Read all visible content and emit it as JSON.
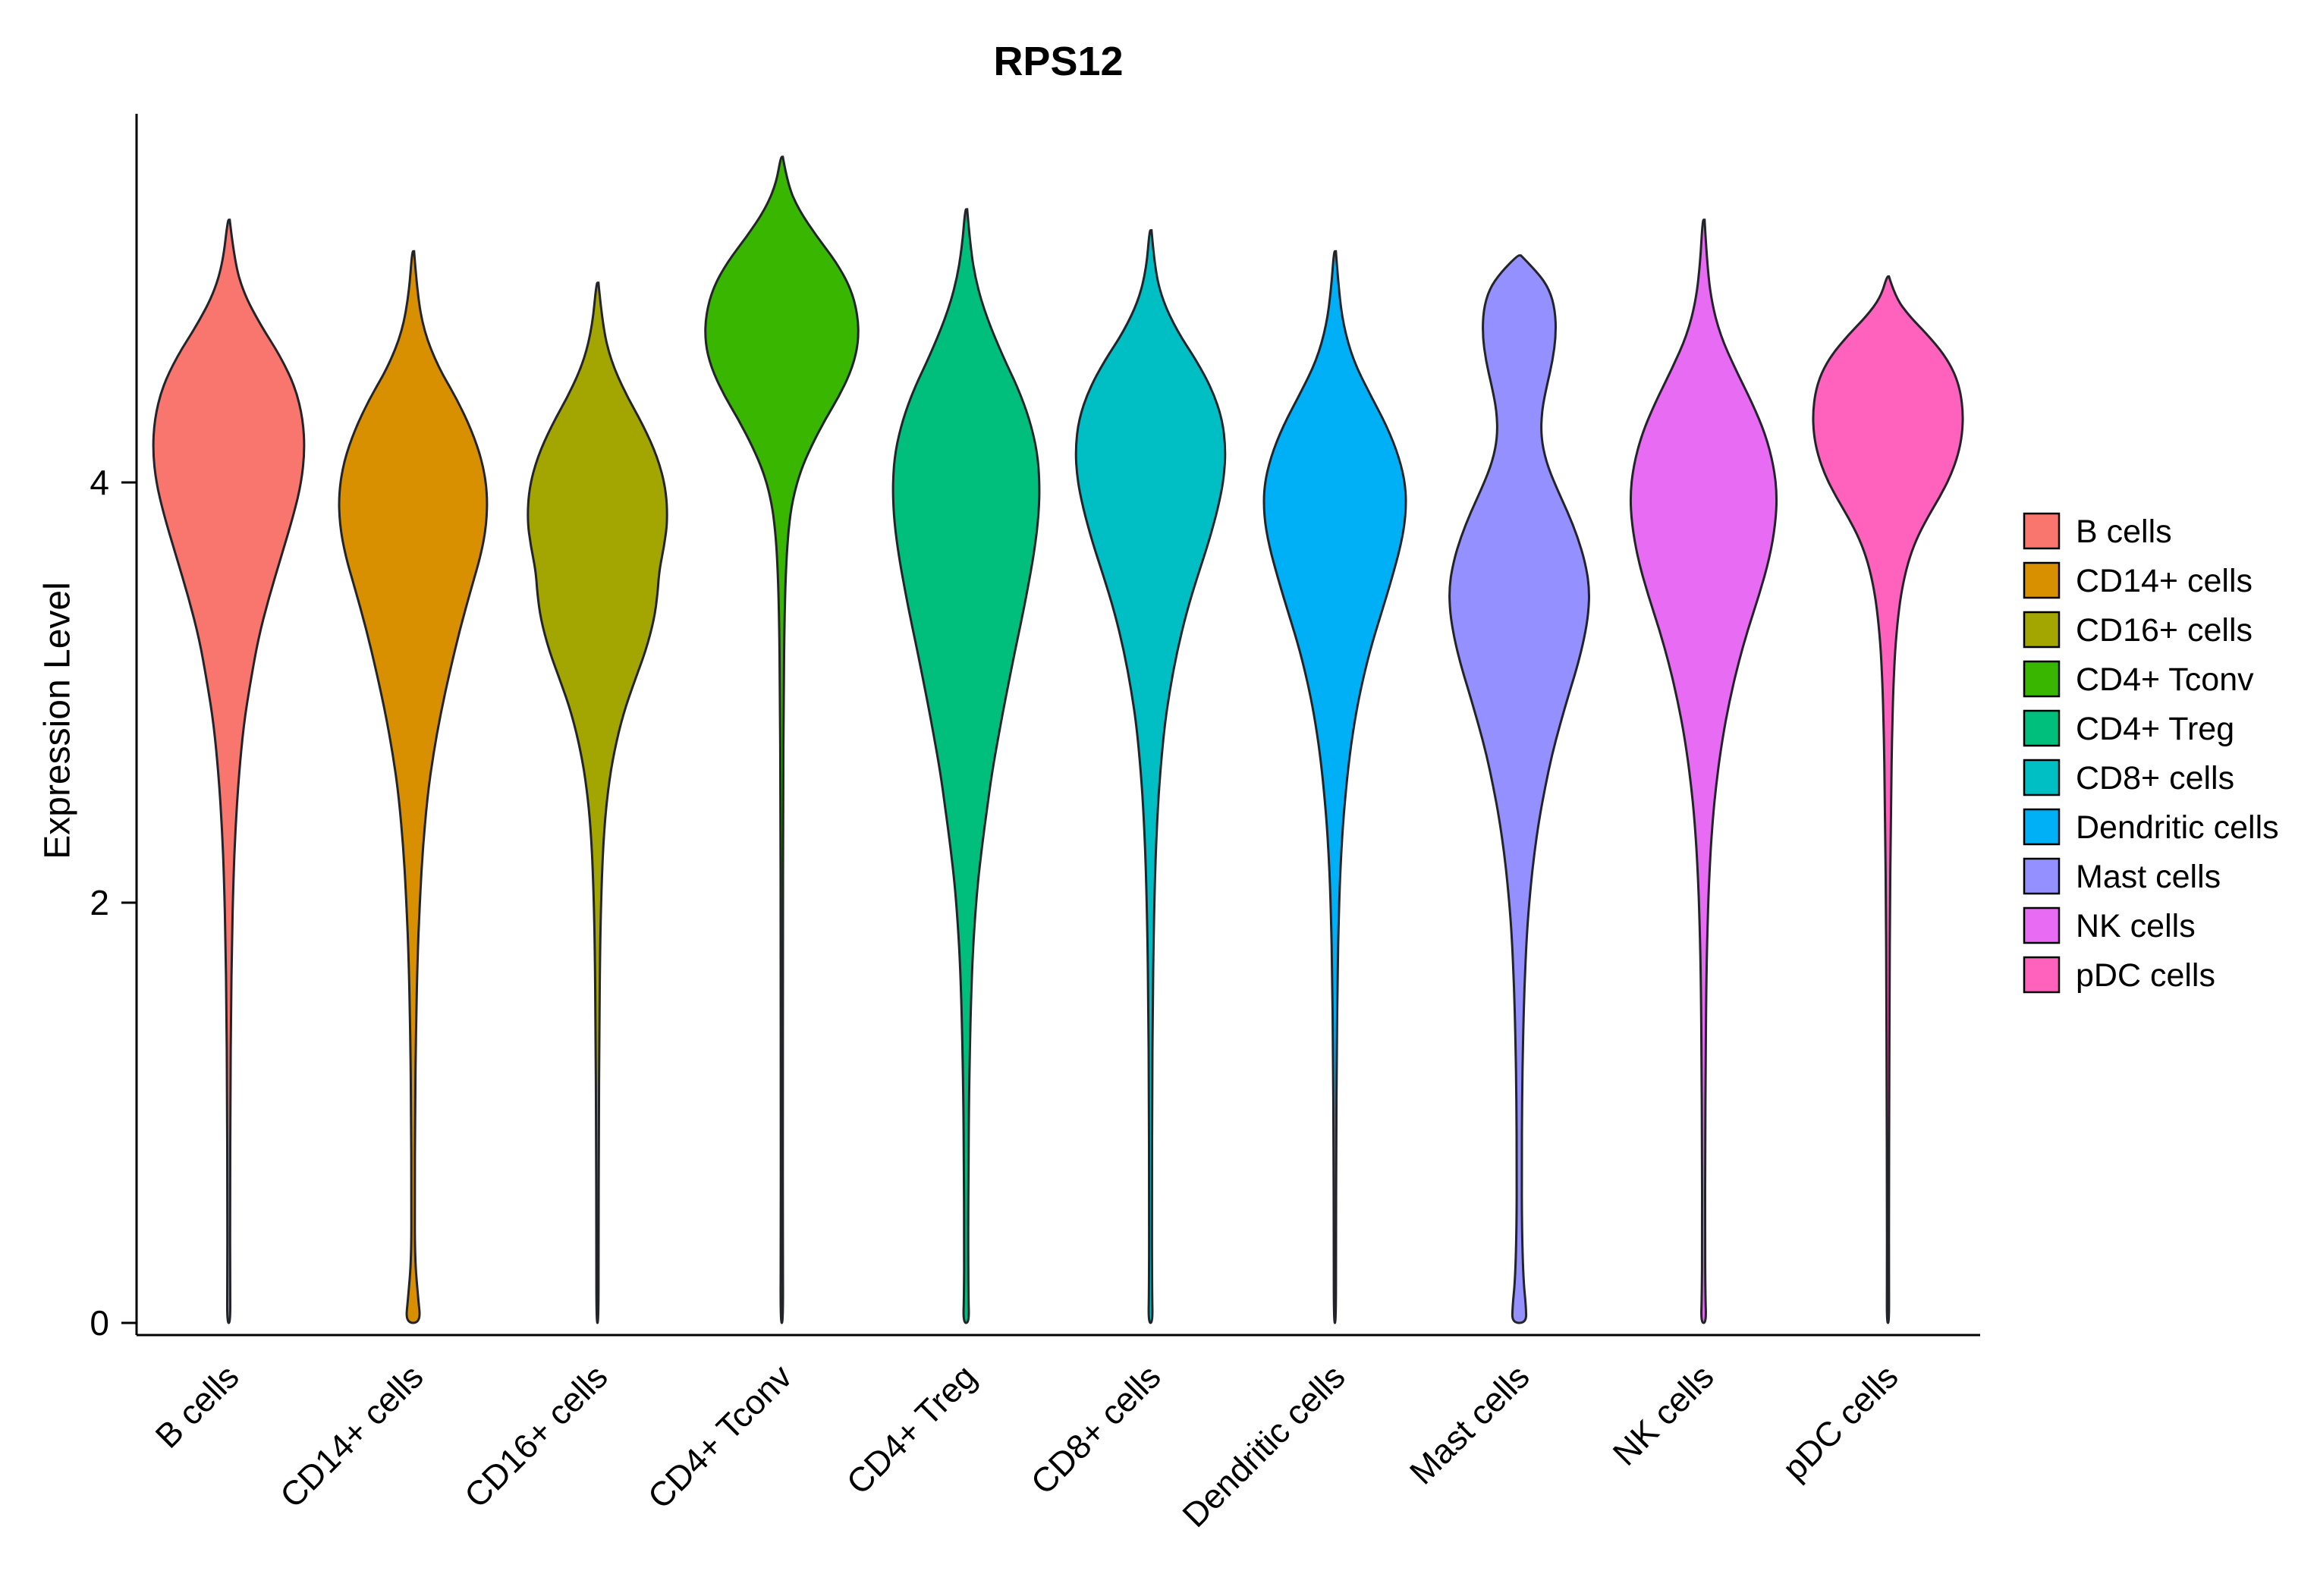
{
  "chart_data": {
    "type": "violin",
    "title": "RPS12",
    "xlabel": "",
    "ylabel": "Expression Level",
    "yticks": [
      0,
      2,
      4
    ],
    "ylim": [
      0,
      5.8
    ],
    "grid": false,
    "legend_position": "right",
    "categories": [
      "B cells",
      "CD14+ cells",
      "CD16+ cells",
      "CD4+ Tconv",
      "CD4+ Treg",
      "CD8+ cells",
      "Dendritic cells",
      "Mast cells",
      "NK cells",
      "pDC cells"
    ],
    "series": [
      {
        "name": "B cells",
        "color": "#F8766D",
        "max_expression": 5.25,
        "peak_expression": 4.2,
        "profile": [
          [
            5.25,
            0.012
          ],
          [
            5.05,
            0.07
          ],
          [
            4.9,
            0.18
          ],
          [
            4.75,
            0.38
          ],
          [
            4.6,
            0.62
          ],
          [
            4.45,
            0.8
          ],
          [
            4.3,
            0.89
          ],
          [
            4.15,
            0.91
          ],
          [
            4.0,
            0.87
          ],
          [
            3.85,
            0.78
          ],
          [
            3.65,
            0.63
          ],
          [
            3.45,
            0.48
          ],
          [
            3.25,
            0.35
          ],
          [
            3.05,
            0.26
          ],
          [
            2.85,
            0.18
          ],
          [
            2.6,
            0.12
          ],
          [
            2.35,
            0.08
          ],
          [
            2.1,
            0.055
          ],
          [
            1.8,
            0.038
          ],
          [
            1.5,
            0.027
          ],
          [
            1.1,
            0.02
          ],
          [
            0.6,
            0.016
          ],
          [
            0.2,
            0.016
          ],
          [
            0,
            0.02
          ]
        ]
      },
      {
        "name": "CD14+ cells",
        "color": "#D89000",
        "max_expression": 5.1,
        "peak_expression": 3.9,
        "profile": [
          [
            5.1,
            0.012
          ],
          [
            4.9,
            0.05
          ],
          [
            4.72,
            0.13
          ],
          [
            4.55,
            0.3
          ],
          [
            4.4,
            0.52
          ],
          [
            4.25,
            0.7
          ],
          [
            4.1,
            0.83
          ],
          [
            3.95,
            0.89
          ],
          [
            3.8,
            0.88
          ],
          [
            3.65,
            0.81
          ],
          [
            3.5,
            0.7
          ],
          [
            3.3,
            0.56
          ],
          [
            3.1,
            0.44
          ],
          [
            2.9,
            0.33
          ],
          [
            2.7,
            0.24
          ],
          [
            2.5,
            0.17
          ],
          [
            2.25,
            0.115
          ],
          [
            2.0,
            0.08
          ],
          [
            1.7,
            0.05
          ],
          [
            1.35,
            0.033
          ],
          [
            1.0,
            0.024
          ],
          [
            0.6,
            0.02
          ],
          [
            0.3,
            0.022
          ],
          [
            0.12,
            0.06
          ],
          [
            0,
            0.09
          ]
        ]
      },
      {
        "name": "CD16+ cells",
        "color": "#A3A500",
        "max_expression": 4.95,
        "peak_expression": 3.8,
        "profile": [
          [
            4.95,
            0.012
          ],
          [
            4.75,
            0.06
          ],
          [
            4.58,
            0.16
          ],
          [
            4.42,
            0.34
          ],
          [
            4.27,
            0.55
          ],
          [
            4.12,
            0.72
          ],
          [
            3.97,
            0.82
          ],
          [
            3.82,
            0.84
          ],
          [
            3.7,
            0.8
          ],
          [
            3.58,
            0.74
          ],
          [
            3.47,
            0.72
          ],
          [
            3.35,
            0.68
          ],
          [
            3.2,
            0.58
          ],
          [
            3.05,
            0.44
          ],
          [
            2.9,
            0.31
          ],
          [
            2.72,
            0.2
          ],
          [
            2.55,
            0.13
          ],
          [
            2.35,
            0.08
          ],
          [
            2.1,
            0.05
          ],
          [
            1.8,
            0.032
          ],
          [
            1.4,
            0.022
          ],
          [
            0.9,
            0.016
          ],
          [
            0.4,
            0.013
          ],
          [
            0,
            0.013
          ]
        ]
      },
      {
        "name": "CD4+ Tconv",
        "color": "#39B600",
        "max_expression": 5.55,
        "peak_expression": 4.7,
        "profile": [
          [
            5.55,
            0.012
          ],
          [
            5.42,
            0.07
          ],
          [
            5.3,
            0.2
          ],
          [
            5.17,
            0.42
          ],
          [
            5.05,
            0.65
          ],
          [
            4.93,
            0.82
          ],
          [
            4.8,
            0.91
          ],
          [
            4.67,
            0.92
          ],
          [
            4.55,
            0.85
          ],
          [
            4.42,
            0.7
          ],
          [
            4.3,
            0.52
          ],
          [
            4.17,
            0.35
          ],
          [
            4.05,
            0.22
          ],
          [
            3.92,
            0.13
          ],
          [
            3.78,
            0.08
          ],
          [
            3.6,
            0.05
          ],
          [
            3.35,
            0.032
          ],
          [
            3.0,
            0.022
          ],
          [
            2.5,
            0.016
          ],
          [
            1.8,
            0.013
          ],
          [
            1.0,
            0.012
          ],
          [
            0.4,
            0.012
          ],
          [
            0,
            0.016
          ]
        ]
      },
      {
        "name": "CD4+ Treg",
        "color": "#00BF7D",
        "max_expression": 5.3,
        "peak_expression": 3.95,
        "profile": [
          [
            5.3,
            0.012
          ],
          [
            5.12,
            0.05
          ],
          [
            4.95,
            0.12
          ],
          [
            4.78,
            0.25
          ],
          [
            4.6,
            0.44
          ],
          [
            4.45,
            0.62
          ],
          [
            4.3,
            0.76
          ],
          [
            4.15,
            0.85
          ],
          [
            4.0,
            0.88
          ],
          [
            3.85,
            0.87
          ],
          [
            3.68,
            0.82
          ],
          [
            3.5,
            0.74
          ],
          [
            3.32,
            0.65
          ],
          [
            3.15,
            0.56
          ],
          [
            2.97,
            0.47
          ],
          [
            2.8,
            0.39
          ],
          [
            2.62,
            0.31
          ],
          [
            2.45,
            0.25
          ],
          [
            2.27,
            0.19
          ],
          [
            2.1,
            0.14
          ],
          [
            1.9,
            0.1
          ],
          [
            1.68,
            0.07
          ],
          [
            1.42,
            0.05
          ],
          [
            1.1,
            0.035
          ],
          [
            0.75,
            0.027
          ],
          [
            0.4,
            0.024
          ],
          [
            0.12,
            0.026
          ],
          [
            0,
            0.035
          ]
        ]
      },
      {
        "name": "CD8+ cells",
        "color": "#00BFC4",
        "max_expression": 5.2,
        "peak_expression": 4.15,
        "profile": [
          [
            5.2,
            0.012
          ],
          [
            5.02,
            0.05
          ],
          [
            4.87,
            0.14
          ],
          [
            4.72,
            0.32
          ],
          [
            4.58,
            0.55
          ],
          [
            4.44,
            0.74
          ],
          [
            4.3,
            0.86
          ],
          [
            4.16,
            0.9
          ],
          [
            4.02,
            0.88
          ],
          [
            3.88,
            0.81
          ],
          [
            3.72,
            0.7
          ],
          [
            3.55,
            0.56
          ],
          [
            3.38,
            0.43
          ],
          [
            3.2,
            0.32
          ],
          [
            3.02,
            0.235
          ],
          [
            2.85,
            0.17
          ],
          [
            2.62,
            0.115
          ],
          [
            2.4,
            0.08
          ],
          [
            2.15,
            0.055
          ],
          [
            1.85,
            0.037
          ],
          [
            1.5,
            0.026
          ],
          [
            1.1,
            0.02
          ],
          [
            0.6,
            0.016
          ],
          [
            0.15,
            0.018
          ],
          [
            0,
            0.025
          ]
        ]
      },
      {
        "name": "Dendritic cells",
        "color": "#00B0F6",
        "max_expression": 5.1,
        "peak_expression": 3.95,
        "profile": [
          [
            5.1,
            0.012
          ],
          [
            4.92,
            0.045
          ],
          [
            4.75,
            0.1
          ],
          [
            4.58,
            0.22
          ],
          [
            4.42,
            0.42
          ],
          [
            4.27,
            0.62
          ],
          [
            4.12,
            0.77
          ],
          [
            3.98,
            0.85
          ],
          [
            3.84,
            0.85
          ],
          [
            3.7,
            0.79
          ],
          [
            3.54,
            0.68
          ],
          [
            3.37,
            0.55
          ],
          [
            3.2,
            0.42
          ],
          [
            3.02,
            0.31
          ],
          [
            2.85,
            0.23
          ],
          [
            2.65,
            0.16
          ],
          [
            2.42,
            0.105
          ],
          [
            2.2,
            0.07
          ],
          [
            1.95,
            0.047
          ],
          [
            1.65,
            0.032
          ],
          [
            1.3,
            0.022
          ],
          [
            0.85,
            0.016
          ],
          [
            0.4,
            0.013
          ],
          [
            0,
            0.013
          ]
        ]
      },
      {
        "name": "Mast cells",
        "color": "#9590FF",
        "max_expression": 5.08,
        "peak_expression": 3.5,
        "bimodal": true,
        "upper_mode": 4.8,
        "profile": [
          [
            5.08,
            0.02
          ],
          [
            5.0,
            0.22
          ],
          [
            4.92,
            0.36
          ],
          [
            4.82,
            0.43
          ],
          [
            4.7,
            0.44
          ],
          [
            4.58,
            0.4
          ],
          [
            4.46,
            0.33
          ],
          [
            4.34,
            0.27
          ],
          [
            4.22,
            0.26
          ],
          [
            4.1,
            0.32
          ],
          [
            3.98,
            0.44
          ],
          [
            3.86,
            0.58
          ],
          [
            3.74,
            0.7
          ],
          [
            3.62,
            0.79
          ],
          [
            3.5,
            0.84
          ],
          [
            3.38,
            0.83
          ],
          [
            3.26,
            0.78
          ],
          [
            3.13,
            0.7
          ],
          [
            3.0,
            0.6
          ],
          [
            2.85,
            0.49
          ],
          [
            2.7,
            0.39
          ],
          [
            2.55,
            0.31
          ],
          [
            2.4,
            0.24
          ],
          [
            2.22,
            0.175
          ],
          [
            2.05,
            0.13
          ],
          [
            1.85,
            0.09
          ],
          [
            1.6,
            0.062
          ],
          [
            1.35,
            0.045
          ],
          [
            1.05,
            0.034
          ],
          [
            0.75,
            0.03
          ],
          [
            0.45,
            0.032
          ],
          [
            0.2,
            0.05
          ],
          [
            0.08,
            0.08
          ],
          [
            0,
            0.085
          ]
        ]
      },
      {
        "name": "NK cells",
        "color": "#E76BF3",
        "max_expression": 5.25,
        "peak_expression": 3.9,
        "profile": [
          [
            5.25,
            0.012
          ],
          [
            5.05,
            0.04
          ],
          [
            4.87,
            0.09
          ],
          [
            4.7,
            0.2
          ],
          [
            4.54,
            0.38
          ],
          [
            4.38,
            0.58
          ],
          [
            4.23,
            0.74
          ],
          [
            4.08,
            0.84
          ],
          [
            3.94,
            0.88
          ],
          [
            3.8,
            0.86
          ],
          [
            3.64,
            0.79
          ],
          [
            3.47,
            0.67
          ],
          [
            3.3,
            0.53
          ],
          [
            3.13,
            0.41
          ],
          [
            2.96,
            0.31
          ],
          [
            2.78,
            0.225
          ],
          [
            2.58,
            0.155
          ],
          [
            2.38,
            0.105
          ],
          [
            2.15,
            0.07
          ],
          [
            1.9,
            0.047
          ],
          [
            1.6,
            0.032
          ],
          [
            1.25,
            0.024
          ],
          [
            0.85,
            0.019
          ],
          [
            0.4,
            0.017
          ],
          [
            0.12,
            0.022
          ],
          [
            0,
            0.03
          ]
        ]
      },
      {
        "name": "pDC cells",
        "color": "#FF62BC",
        "max_expression": 4.98,
        "peak_expression": 4.3,
        "profile": [
          [
            4.98,
            0.012
          ],
          [
            4.88,
            0.09
          ],
          [
            4.79,
            0.26
          ],
          [
            4.7,
            0.48
          ],
          [
            4.61,
            0.67
          ],
          [
            4.52,
            0.8
          ],
          [
            4.43,
            0.87
          ],
          [
            4.33,
            0.9
          ],
          [
            4.23,
            0.89
          ],
          [
            4.13,
            0.84
          ],
          [
            4.03,
            0.75
          ],
          [
            3.93,
            0.62
          ],
          [
            3.83,
            0.47
          ],
          [
            3.73,
            0.34
          ],
          [
            3.62,
            0.24
          ],
          [
            3.5,
            0.17
          ],
          [
            3.36,
            0.12
          ],
          [
            3.2,
            0.085
          ],
          [
            3.0,
            0.062
          ],
          [
            2.78,
            0.048
          ],
          [
            2.55,
            0.04
          ],
          [
            2.3,
            0.032
          ],
          [
            2.0,
            0.025
          ],
          [
            1.6,
            0.019
          ],
          [
            1.1,
            0.015
          ],
          [
            0.6,
            0.012
          ],
          [
            0.2,
            0.012
          ],
          [
            0,
            0.014
          ]
        ]
      }
    ],
    "legend": {
      "entries": [
        "B cells",
        "CD14+ cells",
        "CD16+ cells",
        "CD4+ Tconv",
        "CD4+ Treg",
        "CD8+ cells",
        "Dendritic cells",
        "Mast cells",
        "NK cells",
        "pDC cells"
      ]
    }
  }
}
